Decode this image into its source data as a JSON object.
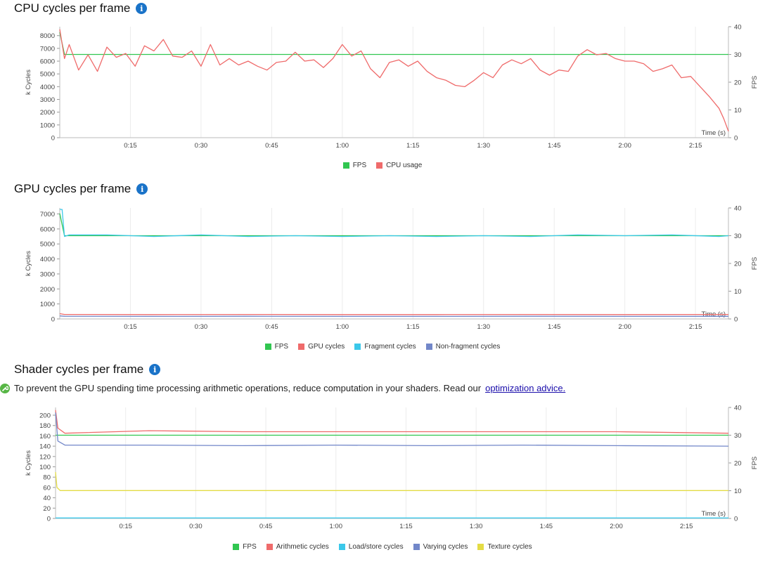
{
  "chart_data": [
    {
      "id": "cpu",
      "type": "line",
      "title": "CPU cycles per frame",
      "info_icon": "info-icon",
      "xlabel": "Time (s)",
      "ylabel": "k Cycles",
      "y2label": "FPS",
      "xlim": [
        0,
        142
      ],
      "ylim": [
        0,
        8700
      ],
      "y2lim": [
        0,
        40
      ],
      "xticks": [
        15,
        30,
        45,
        60,
        75,
        90,
        105,
        120,
        135
      ],
      "xtick_labels": [
        "0:15",
        "0:30",
        "0:45",
        "1:00",
        "1:15",
        "1:30",
        "1:45",
        "2:00",
        "2:15"
      ],
      "yticks": [
        0,
        1000,
        2000,
        3000,
        4000,
        5000,
        6000,
        7000,
        8000
      ],
      "y2ticks": [
        0,
        10,
        20,
        30,
        40
      ],
      "series": [
        {
          "name": "FPS",
          "axis": "right",
          "color": "#31c650",
          "x": [
            0,
            1,
            2,
            10,
            20,
            40,
            60,
            80,
            100,
            120,
            140,
            142
          ],
          "y": [
            38,
            30,
            30,
            30,
            30,
            30,
            30,
            30,
            30,
            30,
            30,
            30
          ]
        },
        {
          "name": "CPU usage",
          "axis": "left",
          "color": "#ef6b6b",
          "x": [
            0,
            1,
            2,
            4,
            6,
            8,
            10,
            12,
            14,
            16,
            18,
            20,
            22,
            24,
            26,
            28,
            30,
            32,
            34,
            36,
            38,
            40,
            42,
            44,
            46,
            48,
            50,
            52,
            54,
            56,
            58,
            60,
            62,
            64,
            66,
            68,
            70,
            72,
            74,
            76,
            78,
            80,
            82,
            84,
            86,
            88,
            90,
            92,
            94,
            96,
            98,
            100,
            102,
            104,
            106,
            108,
            110,
            112,
            114,
            116,
            118,
            120,
            122,
            124,
            126,
            128,
            130,
            132,
            134,
            136,
            138,
            140,
            141,
            142
          ],
          "y": [
            8500,
            6200,
            7300,
            5300,
            6500,
            5200,
            7100,
            6300,
            6600,
            5600,
            7200,
            6800,
            7700,
            6400,
            6300,
            6800,
            5600,
            7300,
            5700,
            6200,
            5700,
            6000,
            5600,
            5300,
            5900,
            6000,
            6700,
            6000,
            6100,
            5500,
            6200,
            7300,
            6400,
            6800,
            5400,
            4700,
            5900,
            6100,
            5600,
            6000,
            5200,
            4700,
            4500,
            4100,
            4000,
            4500,
            5100,
            4700,
            5700,
            6100,
            5800,
            6200,
            5300,
            4900,
            5300,
            5200,
            6400,
            6900,
            6500,
            6600,
            6200,
            6000,
            6000,
            5800,
            5200,
            5400,
            5700,
            4700,
            4800,
            4000,
            3200,
            2300,
            1500,
            500
          ]
        }
      ]
    },
    {
      "id": "gpu",
      "type": "line",
      "title": "GPU cycles per frame",
      "info_icon": "info-icon",
      "xlabel": "Time (s)",
      "ylabel": "k Cycles",
      "y2label": "FPS",
      "xlim": [
        0,
        142
      ],
      "ylim": [
        0,
        7400
      ],
      "y2lim": [
        0,
        40
      ],
      "xticks": [
        15,
        30,
        45,
        60,
        75,
        90,
        105,
        120,
        135
      ],
      "xtick_labels": [
        "0:15",
        "0:30",
        "0:45",
        "1:00",
        "1:15",
        "1:30",
        "1:45",
        "2:00",
        "2:15"
      ],
      "yticks": [
        0,
        1000,
        2000,
        3000,
        4000,
        5000,
        6000,
        7000
      ],
      "y2ticks": [
        0,
        10,
        20,
        30,
        40
      ],
      "series": [
        {
          "name": "FPS",
          "axis": "right",
          "color": "#31c650",
          "x": [
            0,
            1,
            142
          ],
          "y": [
            38,
            30,
            30
          ]
        },
        {
          "name": "GPU cycles",
          "axis": "left",
          "color": "#ef6b6b",
          "x": [
            0,
            1,
            20,
            40,
            60,
            80,
            100,
            120,
            142
          ],
          "y": [
            350,
            300,
            290,
            300,
            290,
            290,
            300,
            290,
            300
          ]
        },
        {
          "name": "Fragment cycles",
          "axis": "left",
          "color": "#3bc8ea",
          "x": [
            0,
            0.5,
            1,
            2,
            10,
            20,
            30,
            40,
            50,
            60,
            70,
            80,
            90,
            100,
            110,
            120,
            130,
            140,
            142
          ],
          "y": [
            7300,
            7300,
            5500,
            5600,
            5600,
            5500,
            5600,
            5500,
            5550,
            5500,
            5550,
            5500,
            5550,
            5500,
            5600,
            5550,
            5600,
            5500,
            5550
          ]
        },
        {
          "name": "Non-fragment cycles",
          "axis": "left",
          "color": "#7287c9",
          "x": [
            0,
            1,
            20,
            40,
            60,
            80,
            100,
            120,
            142
          ],
          "y": [
            200,
            180,
            170,
            180,
            170,
            170,
            180,
            170,
            175
          ]
        }
      ]
    },
    {
      "id": "shader",
      "type": "line",
      "title": "Shader cycles per frame",
      "info_icon": "info-icon",
      "advice_icon": "wrench-icon",
      "advice_text": "To prevent the GPU spending time processing arithmetic operations, reduce computation in your shaders. Read our",
      "advice_link": "optimization advice.",
      "xlabel": "Time (s)",
      "ylabel": "k Cycles",
      "y2label": "FPS",
      "xlim": [
        0,
        144
      ],
      "ylim": [
        0,
        215
      ],
      "y2lim": [
        0,
        40
      ],
      "xticks": [
        15,
        30,
        45,
        60,
        75,
        90,
        105,
        120,
        135
      ],
      "xtick_labels": [
        "0:15",
        "0:30",
        "0:45",
        "1:00",
        "1:15",
        "1:30",
        "1:45",
        "2:00",
        "2:15"
      ],
      "yticks": [
        0,
        20,
        40,
        60,
        80,
        100,
        120,
        140,
        160,
        180,
        200
      ],
      "y2ticks": [
        0,
        10,
        20,
        30,
        40
      ],
      "series": [
        {
          "name": "FPS",
          "axis": "right",
          "color": "#31c650",
          "x": [
            0,
            1,
            144
          ],
          "y": [
            30,
            30,
            30
          ]
        },
        {
          "name": "Arithmetic cycles",
          "axis": "left",
          "color": "#ef6b6b",
          "x": [
            0,
            0.5,
            2,
            20,
            40,
            60,
            80,
            100,
            120,
            144
          ],
          "y": [
            210,
            175,
            165,
            170,
            168,
            168,
            168,
            168,
            168,
            165
          ]
        },
        {
          "name": "Load/store cycles",
          "axis": "left",
          "color": "#3bc8ea",
          "x": [
            0,
            144
          ],
          "y": [
            1,
            1
          ]
        },
        {
          "name": "Varying cycles",
          "axis": "left",
          "color": "#7287c9",
          "x": [
            0,
            0.5,
            2,
            20,
            40,
            60,
            80,
            100,
            120,
            144
          ],
          "y": [
            205,
            150,
            142,
            142,
            141,
            142,
            141,
            142,
            141,
            140
          ]
        },
        {
          "name": "Texture cycles",
          "axis": "left",
          "color": "#e4dc45",
          "x": [
            0,
            0.3,
            1,
            20,
            40,
            60,
            80,
            100,
            120,
            144
          ],
          "y": [
            90,
            60,
            54,
            54,
            54,
            54,
            54,
            54,
            54,
            54
          ]
        }
      ]
    }
  ]
}
